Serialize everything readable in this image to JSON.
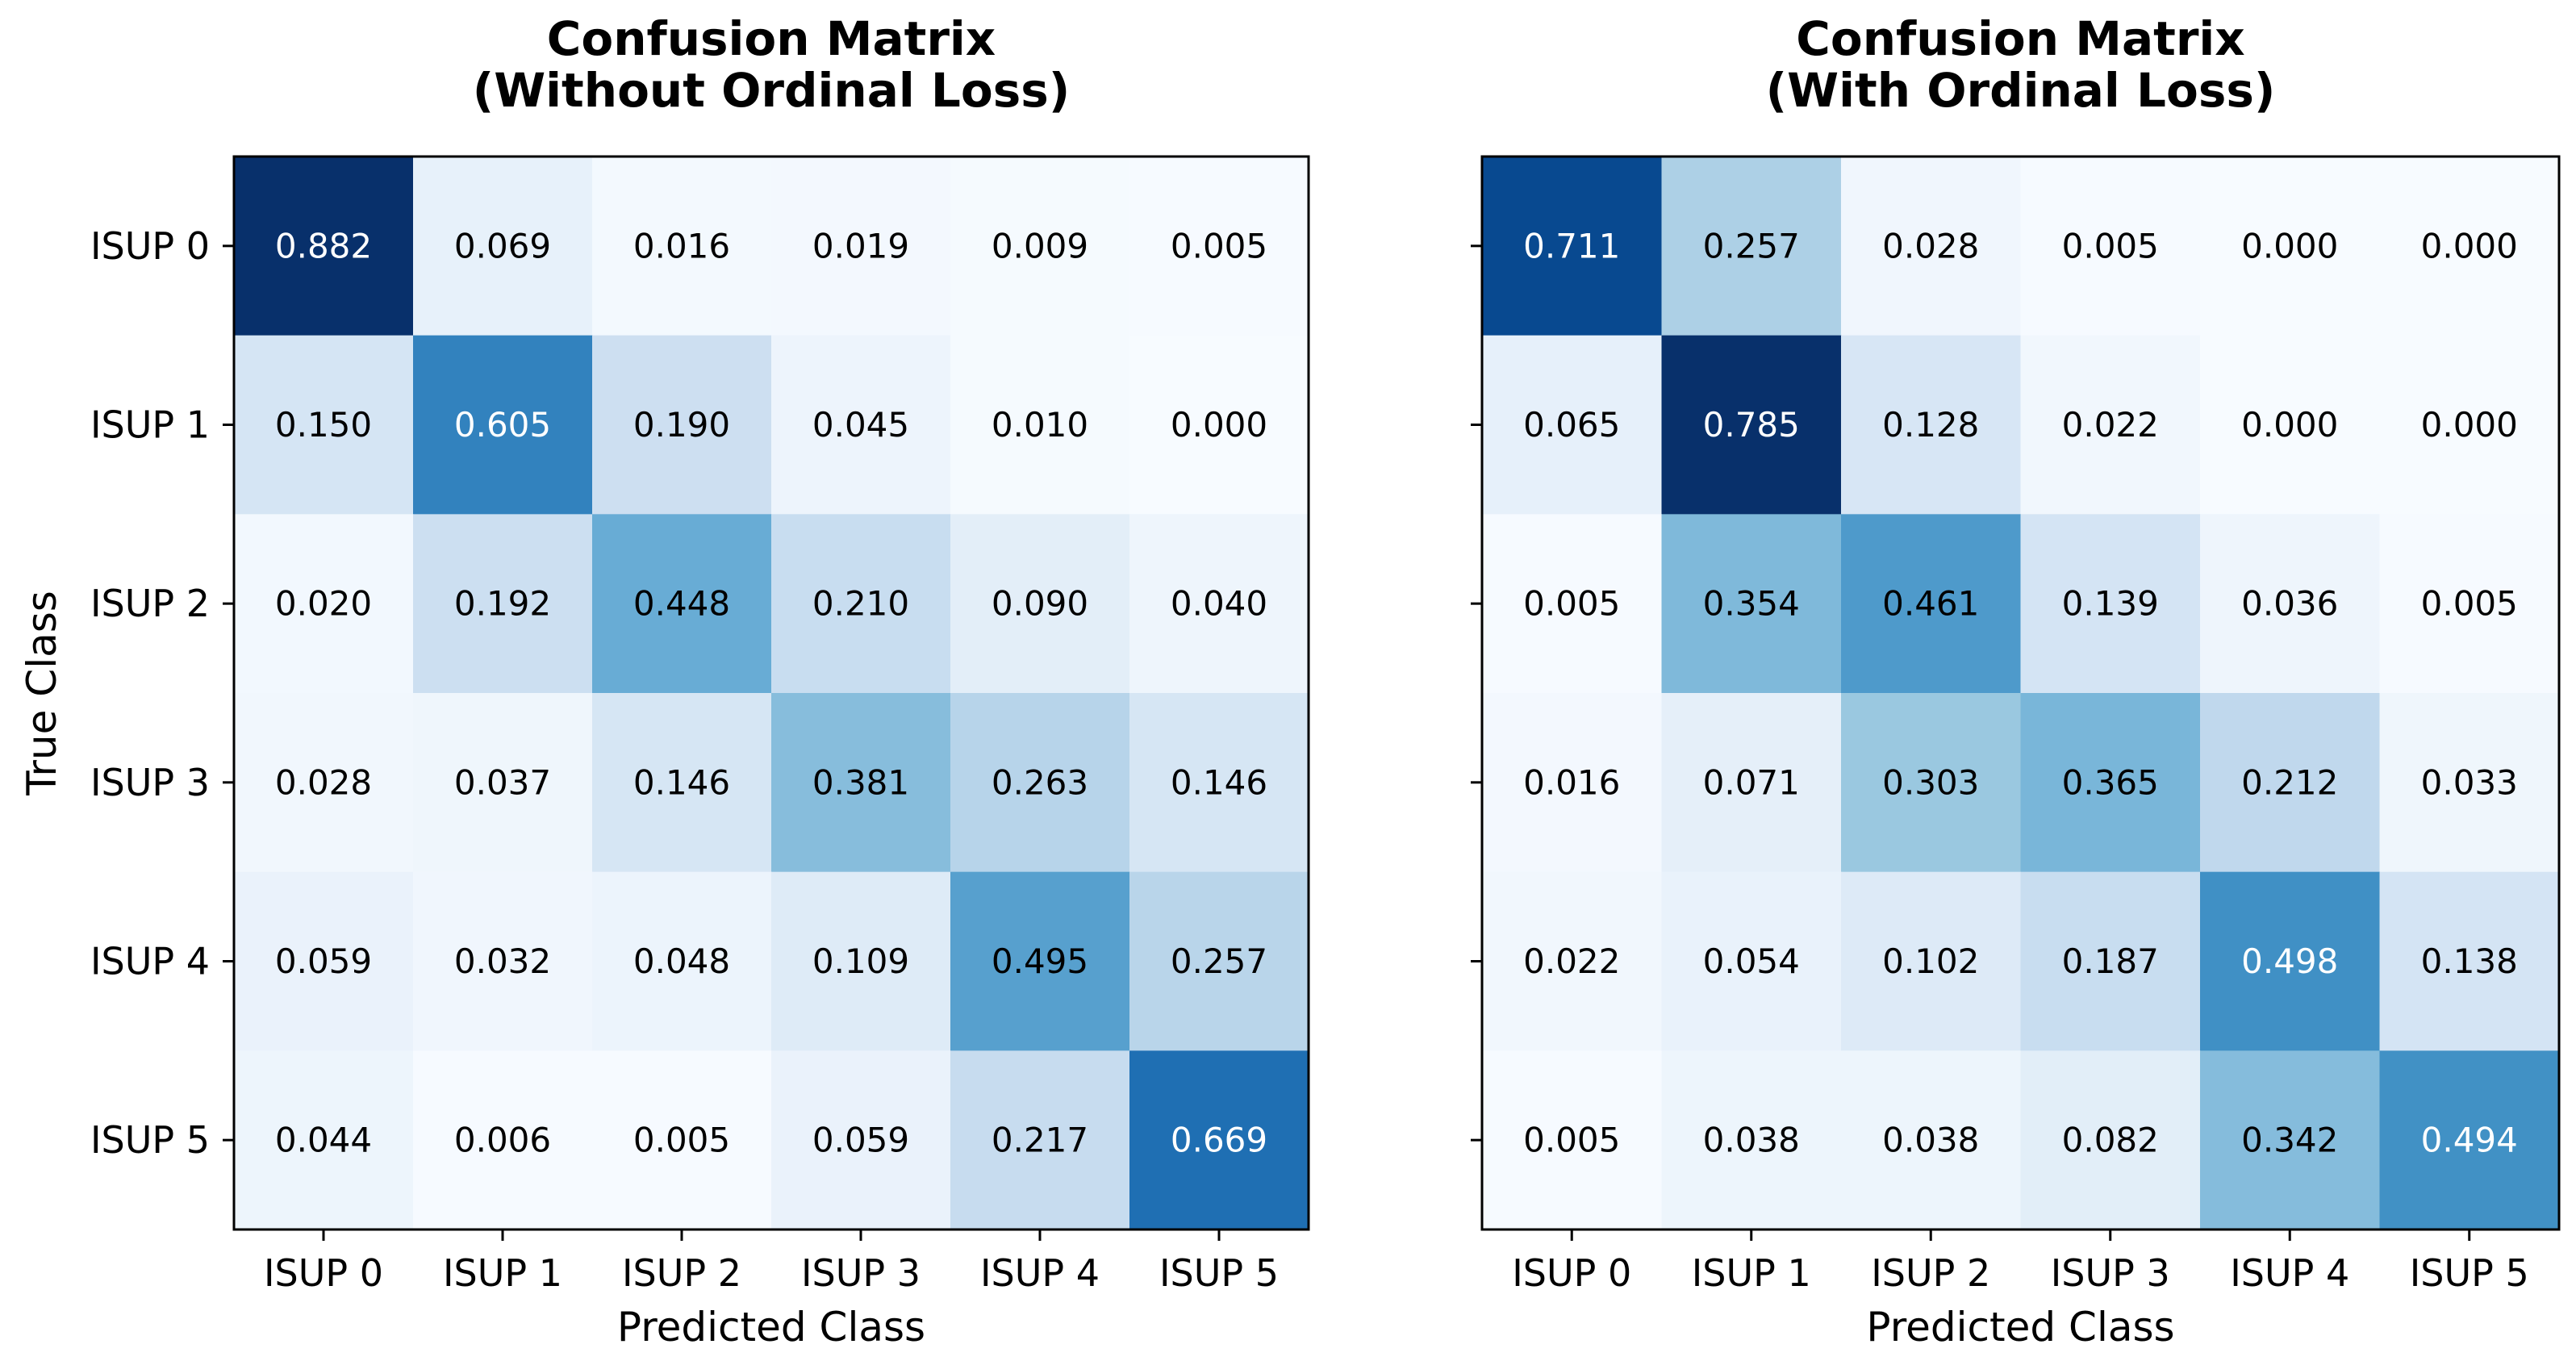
{
  "chart_data": [
    {
      "type": "heatmap",
      "title": "Confusion Matrix\n(Without Ordinal Loss)",
      "xlabel": "Predicted Class",
      "ylabel": "True Class",
      "x_categories": [
        "ISUP 0",
        "ISUP 1",
        "ISUP 2",
        "ISUP 3",
        "ISUP 4",
        "ISUP 5"
      ],
      "y_categories": [
        "ISUP 0",
        "ISUP 1",
        "ISUP 2",
        "ISUP 3",
        "ISUP 4",
        "ISUP 5"
      ],
      "colormap": "Blues",
      "values": [
        [
          0.882,
          0.069,
          0.016,
          0.019,
          0.009,
          0.005
        ],
        [
          0.15,
          0.605,
          0.19,
          0.045,
          0.01,
          0.0
        ],
        [
          0.02,
          0.192,
          0.448,
          0.21,
          0.09,
          0.04
        ],
        [
          0.028,
          0.037,
          0.146,
          0.381,
          0.263,
          0.146
        ],
        [
          0.059,
          0.032,
          0.048,
          0.109,
          0.495,
          0.257
        ],
        [
          0.044,
          0.006,
          0.005,
          0.059,
          0.217,
          0.669
        ]
      ]
    },
    {
      "type": "heatmap",
      "title": "Confusion Matrix\n(With Ordinal Loss)",
      "xlabel": "Predicted Class",
      "ylabel": "",
      "x_categories": [
        "ISUP 0",
        "ISUP 1",
        "ISUP 2",
        "ISUP 3",
        "ISUP 4",
        "ISUP 5"
      ],
      "y_categories": [
        "ISUP 0",
        "ISUP 1",
        "ISUP 2",
        "ISUP 3",
        "ISUP 4",
        "ISUP 5"
      ],
      "colormap": "Blues",
      "values": [
        [
          0.711,
          0.257,
          0.028,
          0.005,
          0.0,
          0.0
        ],
        [
          0.065,
          0.785,
          0.128,
          0.022,
          0.0,
          0.0
        ],
        [
          0.005,
          0.354,
          0.461,
          0.139,
          0.036,
          0.005
        ],
        [
          0.016,
          0.071,
          0.303,
          0.365,
          0.212,
          0.033
        ],
        [
          0.022,
          0.054,
          0.102,
          0.187,
          0.498,
          0.138
        ],
        [
          0.005,
          0.038,
          0.038,
          0.082,
          0.342,
          0.494
        ]
      ]
    }
  ]
}
